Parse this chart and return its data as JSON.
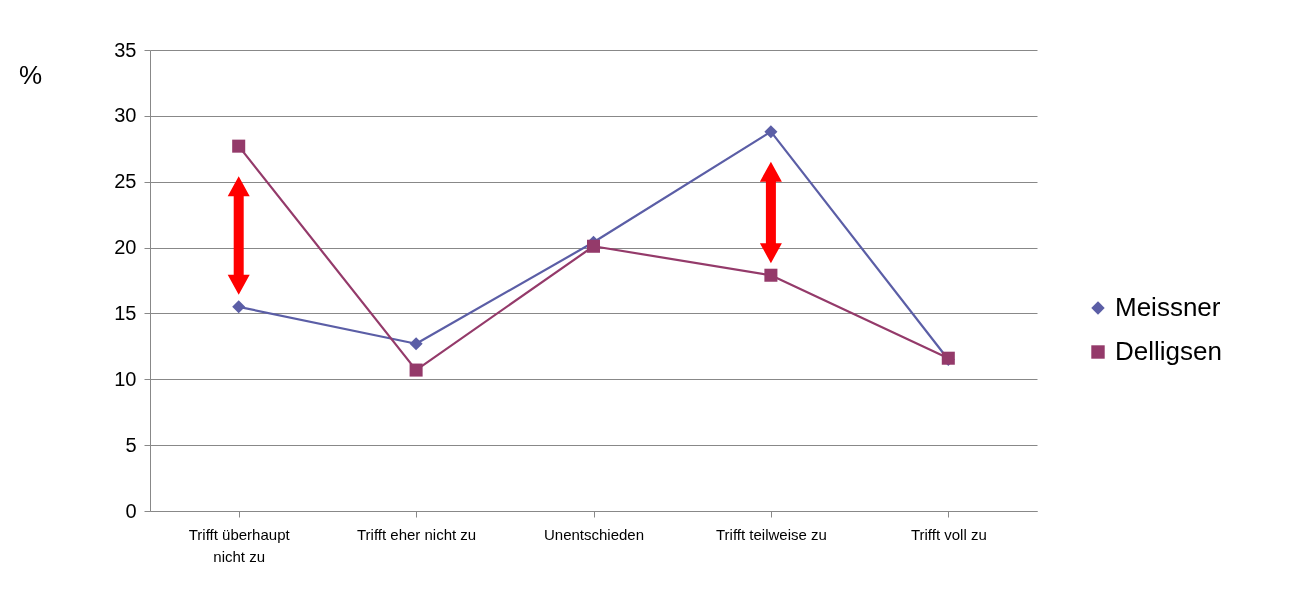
{
  "chart_data": {
    "type": "line",
    "ylabel": "%",
    "categories": [
      "Trifft überhaupt nicht zu",
      "Trifft eher nicht zu",
      "Unentschieden",
      "Trifft teilweise zu",
      "Trifft voll zu"
    ],
    "series": [
      {
        "name": "Meissner",
        "color": "#5b5ea6",
        "marker": "diamond",
        "values": [
          15.5,
          12.7,
          20.4,
          28.8,
          11.5
        ]
      },
      {
        "name": "Delligsen",
        "color": "#943a6a",
        "marker": "square",
        "values": [
          27.7,
          10.7,
          20.1,
          17.9,
          11.6
        ]
      }
    ],
    "ylim": [
      0,
      35
    ],
    "yticks": [
      0,
      5,
      10,
      15,
      20,
      25,
      30,
      35
    ],
    "grid": "y",
    "legend": "right"
  }
}
